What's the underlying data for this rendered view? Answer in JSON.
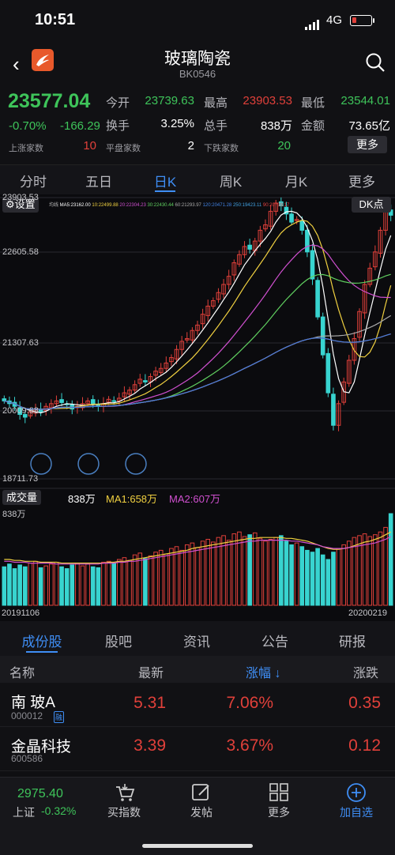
{
  "status_bar": {
    "time": "10:51",
    "network": "4G"
  },
  "header": {
    "title": "玻璃陶瓷",
    "code": "BK0546"
  },
  "quote": {
    "price": "23577.04",
    "change_pct": "-0.70%",
    "change": "-166.29",
    "open_label": "今开",
    "open": "23739.63",
    "high_label": "最高",
    "high": "23903.53",
    "low_label": "最低",
    "low": "23544.01",
    "turnover_label": "换手",
    "turnover": "3.25%",
    "volume_label": "总手",
    "volume": "838万",
    "amount_label": "金额",
    "amount": "73.65亿",
    "up_label": "上涨家数",
    "up_count": "10",
    "flat_label": "平盘家数",
    "flat_count": "2",
    "down_label": "下跌家数",
    "down_count": "20",
    "more_label": "更多"
  },
  "tabs": [
    {
      "label": "分时"
    },
    {
      "label": "五日"
    },
    {
      "label": "日K"
    },
    {
      "label": "周K"
    },
    {
      "label": "月K"
    },
    {
      "label": "更多"
    }
  ],
  "chart": {
    "settings_label": "设置",
    "dk_label": "DK点",
    "ma_labels": [
      {
        "text": "均线",
        "color": "#bbbbbb"
      },
      {
        "text": "MA5:23162.00",
        "color": "#ffffff"
      },
      {
        "text": "10:22499.88",
        "color": "#f0d040"
      },
      {
        "text": "20:22304.23",
        "color": "#d050d0"
      },
      {
        "text": "30:22430.44",
        "color": "#60d060"
      },
      {
        "text": "60:21293.97",
        "color": "#aaaaaa"
      },
      {
        "text": "120:20471.28",
        "color": "#4080e0"
      },
      {
        "text": "250:19423.11",
        "color": "#40a0e0"
      },
      {
        "text": "90:20739.17",
        "color": "#e04040"
      }
    ],
    "y_labels": [
      "23903.53",
      "22605.58",
      "21307.63",
      "20009.68",
      "18711.73"
    ],
    "volume_label": "成交量",
    "volume_value": "838万",
    "volume_ma1": "MA1:658万",
    "volume_ma2": "MA2:607万",
    "volume_max": "838万",
    "date_start": "20191106",
    "date_end": "20200219"
  },
  "chart_data": {
    "type": "candlestick",
    "ylim": [
      18711.73,
      23903.53
    ],
    "close": [
      20150,
      20100,
      20050,
      19900,
      19850,
      19950,
      20000,
      19950,
      20050,
      20100,
      20150,
      20120,
      20080,
      20000,
      20050,
      20100,
      20150,
      20100,
      20050,
      20100,
      20180,
      20150,
      20200,
      20300,
      20350,
      20450,
      20550,
      20500,
      20600,
      20700,
      20750,
      20850,
      20950,
      21100,
      21250,
      21300,
      21450,
      21550,
      21750,
      21900,
      22000,
      22150,
      22300,
      22450,
      22700,
      22850,
      23000,
      22950,
      23100,
      23300,
      23400,
      23650,
      23800,
      23750,
      23600,
      23450,
      23500,
      23300,
      22900,
      22400,
      21700,
      21000,
      20300,
      19700,
      20100,
      20500,
      20900,
      21300,
      21800,
      22300,
      22600,
      22900,
      23300,
      23650,
      23577.04
    ],
    "volume": [
      42,
      45,
      40,
      44,
      42,
      46,
      48,
      41,
      43,
      45,
      47,
      42,
      40,
      44,
      46,
      43,
      45,
      42,
      41,
      47,
      48,
      46,
      50,
      52,
      49,
      55,
      57,
      51,
      54,
      58,
      60,
      56,
      62,
      64,
      60,
      66,
      68,
      63,
      70,
      72,
      69,
      74,
      76,
      71,
      78,
      80,
      75,
      77,
      79,
      73,
      70,
      72,
      74,
      76,
      70,
      66,
      68,
      64,
      60,
      58,
      62,
      55,
      50,
      58,
      62,
      66,
      70,
      74,
      76,
      78,
      75,
      77,
      80,
      85,
      100
    ],
    "volume_ma1": [
      50,
      50,
      49,
      49,
      48,
      48,
      48,
      47,
      47,
      47,
      47,
      46,
      46,
      46,
      46,
      46,
      46,
      46,
      46,
      46,
      47,
      47,
      48,
      48,
      49,
      50,
      51,
      52,
      53,
      54,
      55,
      56,
      57,
      58,
      59,
      60,
      62,
      63,
      64,
      65,
      66,
      67,
      68,
      69,
      70,
      71,
      72,
      73,
      73,
      74,
      74,
      74,
      74,
      74,
      73,
      73,
      72,
      71,
      70,
      68,
      66,
      64,
      62,
      61,
      61,
      62,
      63,
      65,
      67,
      69,
      70,
      72,
      74,
      77,
      80
    ],
    "volume_ma2": [
      48,
      48,
      47,
      47,
      47,
      46,
      46,
      46,
      46,
      46,
      45,
      45,
      45,
      45,
      45,
      45,
      45,
      45,
      45,
      46,
      46,
      46,
      47,
      47,
      48,
      48,
      49,
      50,
      51,
      52,
      53,
      54,
      55,
      56,
      57,
      58,
      59,
      60,
      61,
      62,
      63,
      64,
      65,
      66,
      67,
      68,
      69,
      70,
      70,
      71,
      71,
      71,
      71,
      71,
      71,
      70,
      70,
      69,
      68,
      67,
      66,
      64,
      63,
      62,
      62,
      62,
      63,
      64,
      65,
      66,
      67,
      68,
      70,
      72,
      75
    ]
  },
  "sub_tabs": [
    {
      "label": "成份股"
    },
    {
      "label": "股吧"
    },
    {
      "label": "资讯"
    },
    {
      "label": "公告"
    },
    {
      "label": "研报"
    }
  ],
  "table": {
    "headers": {
      "name": "名称",
      "latest": "最新",
      "pct": "涨幅 ↓",
      "change": "涨跌"
    },
    "rows": [
      {
        "name": "南 玻A",
        "code": "000012",
        "badge": "融",
        "latest": "5.31",
        "pct": "7.06%",
        "change": "0.35"
      },
      {
        "name": "金晶科技",
        "code": "600586",
        "badge": "",
        "latest": "3.39",
        "pct": "3.67%",
        "change": "0.12"
      }
    ]
  },
  "bottom_bar": {
    "index_value": "2975.40",
    "index_name": "上证",
    "index_pct": "-0.32%",
    "items": [
      {
        "label": "买指数",
        "icon": "basket-icon"
      },
      {
        "label": "发帖",
        "icon": "edit-icon"
      },
      {
        "label": "更多",
        "icon": "grid-icon"
      },
      {
        "label": "加自选",
        "icon": "plus-circle-icon"
      }
    ]
  }
}
